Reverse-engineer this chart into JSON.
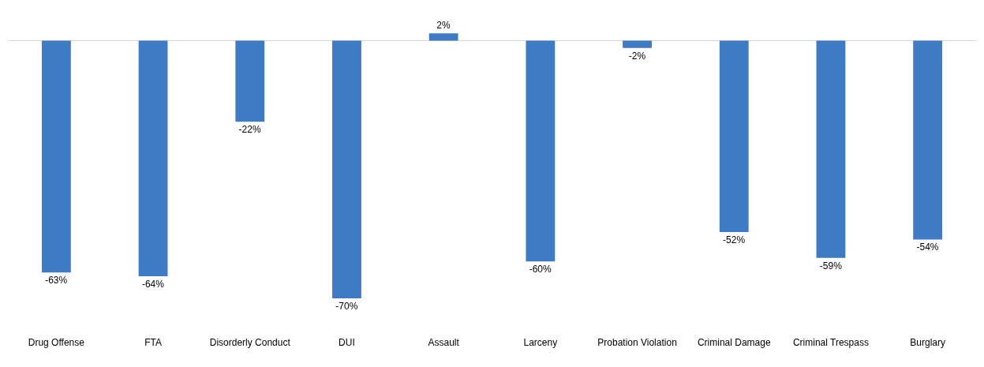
{
  "chart_data": {
    "type": "bar",
    "categories": [
      "Drug Offense",
      "FTA",
      "Disorderly Conduct",
      "DUI",
      "Assault",
      "Larceny",
      "Probation Violation",
      "Criminal Damage",
      "Criminal Trespass",
      "Burglary"
    ],
    "values": [
      -63,
      -64,
      -22,
      -70,
      2,
      -60,
      -2,
      -52,
      -59,
      -54
    ],
    "value_labels": [
      "-63%",
      "-64%",
      "-22%",
      "-70%",
      "2%",
      "-60%",
      "-2%",
      "-52%",
      "-59%",
      "-54%"
    ],
    "color": "#3f7ac4"
  }
}
